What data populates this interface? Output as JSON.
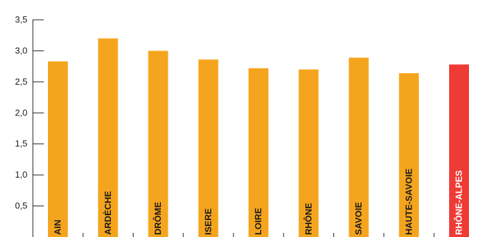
{
  "chart_data": {
    "type": "bar",
    "title": "",
    "xlabel": "",
    "ylabel": "",
    "ylim": [
      0,
      3.5
    ],
    "yticks": [
      0.5,
      1.0,
      1.5,
      2.0,
      2.5,
      3.0,
      3.5
    ],
    "ytick_labels": [
      "0,5",
      "1,0",
      "1,5",
      "2,0",
      "2,5",
      "3,0",
      "3,5"
    ],
    "categories": [
      "AIN",
      "ARDÈCHE",
      "DRÔME",
      "ISERE",
      "LOIRE",
      "RHÔNE",
      "SAVOIE",
      "HAUTE-SAVOIE",
      "RHÔNE-ALPES"
    ],
    "values": [
      2.83,
      3.2,
      3.0,
      2.86,
      2.72,
      2.7,
      2.89,
      2.64,
      2.78
    ],
    "highlight_category": "RHÔNE-ALPES",
    "grid": false,
    "legend": "none",
    "colors": {
      "bar": "#F5A51D",
      "highlight": "#EE3B35",
      "axis": "#1a1a1a"
    }
  }
}
